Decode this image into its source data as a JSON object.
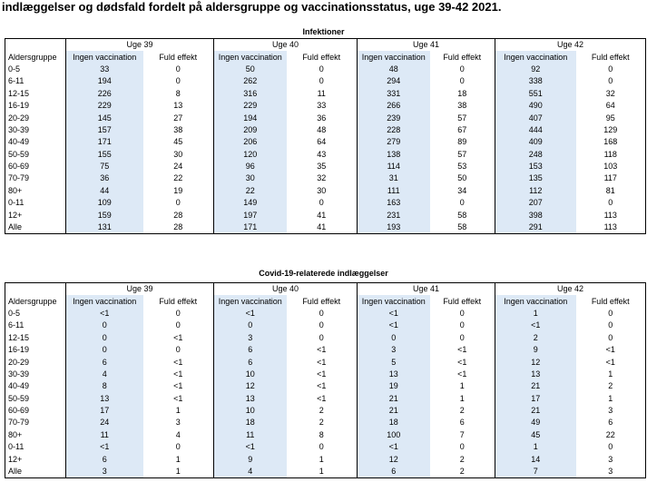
{
  "title": "indlæggelser og dødsfald fordelt på aldersgruppe og vaccinationsstatus, uge 39-42 2021.",
  "col_age": "Aldersgruppe",
  "col_none": "Ingen vaccination",
  "col_full": "Fuld effekt",
  "weeks": [
    "Uge 39",
    "Uge 40",
    "Uge 41",
    "Uge 42"
  ],
  "tables": [
    {
      "name": "Infektioner",
      "rows": [
        {
          "age": "0-5",
          "v": [
            "33",
            "0",
            "50",
            "0",
            "48",
            "0",
            "92",
            "0"
          ]
        },
        {
          "age": "6-11",
          "v": [
            "194",
            "0",
            "262",
            "0",
            "294",
            "0",
            "338",
            "0"
          ]
        },
        {
          "age": "12-15",
          "v": [
            "226",
            "8",
            "316",
            "11",
            "331",
            "18",
            "551",
            "32"
          ]
        },
        {
          "age": "16-19",
          "v": [
            "229",
            "13",
            "229",
            "33",
            "266",
            "38",
            "490",
            "64"
          ]
        },
        {
          "age": "20-29",
          "v": [
            "145",
            "27",
            "194",
            "36",
            "239",
            "57",
            "407",
            "95"
          ]
        },
        {
          "age": "30-39",
          "v": [
            "157",
            "38",
            "209",
            "48",
            "228",
            "67",
            "444",
            "129"
          ]
        },
        {
          "age": "40-49",
          "v": [
            "171",
            "45",
            "206",
            "64",
            "279",
            "89",
            "409",
            "168"
          ]
        },
        {
          "age": "50-59",
          "v": [
            "155",
            "30",
            "120",
            "43",
            "138",
            "57",
            "248",
            "118"
          ]
        },
        {
          "age": "60-69",
          "v": [
            "75",
            "24",
            "96",
            "35",
            "114",
            "53",
            "153",
            "103"
          ]
        },
        {
          "age": "70-79",
          "v": [
            "36",
            "22",
            "30",
            "32",
            "31",
            "50",
            "135",
            "117"
          ]
        },
        {
          "age": "80+",
          "v": [
            "44",
            "19",
            "22",
            "30",
            "111",
            "34",
            "112",
            "81"
          ]
        },
        {
          "age": "0-11",
          "v": [
            "109",
            "0",
            "149",
            "0",
            "163",
            "0",
            "207",
            "0"
          ]
        },
        {
          "age": "12+",
          "v": [
            "159",
            "28",
            "197",
            "41",
            "231",
            "58",
            "398",
            "113"
          ]
        },
        {
          "age": "Alle",
          "v": [
            "131",
            "28",
            "171",
            "41",
            "193",
            "58",
            "291",
            "113"
          ]
        }
      ]
    },
    {
      "name": "Covid-19-relaterede indlæggelser",
      "rows": [
        {
          "age": "0-5",
          "v": [
            "<1",
            "0",
            "<1",
            "0",
            "<1",
            "0",
            "1",
            "0"
          ]
        },
        {
          "age": "6-11",
          "v": [
            "0",
            "0",
            "0",
            "0",
            "<1",
            "0",
            "<1",
            "0"
          ]
        },
        {
          "age": "12-15",
          "v": [
            "0",
            "<1",
            "3",
            "0",
            "0",
            "0",
            "2",
            "0"
          ]
        },
        {
          "age": "16-19",
          "v": [
            "0",
            "0",
            "6",
            "<1",
            "3",
            "<1",
            "9",
            "<1"
          ]
        },
        {
          "age": "20-29",
          "v": [
            "6",
            "<1",
            "6",
            "<1",
            "5",
            "<1",
            "12",
            "<1"
          ]
        },
        {
          "age": "30-39",
          "v": [
            "4",
            "<1",
            "10",
            "<1",
            "13",
            "<1",
            "13",
            "1"
          ]
        },
        {
          "age": "40-49",
          "v": [
            "8",
            "<1",
            "12",
            "<1",
            "19",
            "1",
            "21",
            "2"
          ]
        },
        {
          "age": "50-59",
          "v": [
            "13",
            "<1",
            "13",
            "<1",
            "21",
            "1",
            "17",
            "1"
          ]
        },
        {
          "age": "60-69",
          "v": [
            "17",
            "1",
            "10",
            "2",
            "21",
            "2",
            "21",
            "3"
          ]
        },
        {
          "age": "70-79",
          "v": [
            "24",
            "3",
            "18",
            "2",
            "18",
            "6",
            "49",
            "6"
          ]
        },
        {
          "age": "80+",
          "v": [
            "11",
            "4",
            "11",
            "8",
            "100",
            "7",
            "45",
            "22"
          ]
        },
        {
          "age": "0-11",
          "v": [
            "<1",
            "0",
            "<1",
            "0",
            "<1",
            "0",
            "1",
            "0"
          ]
        },
        {
          "age": "12+",
          "v": [
            "6",
            "1",
            "9",
            "1",
            "12",
            "2",
            "14",
            "3"
          ]
        },
        {
          "age": "Alle",
          "v": [
            "3",
            "1",
            "4",
            "1",
            "6",
            "2",
            "7",
            "3"
          ]
        }
      ]
    }
  ]
}
